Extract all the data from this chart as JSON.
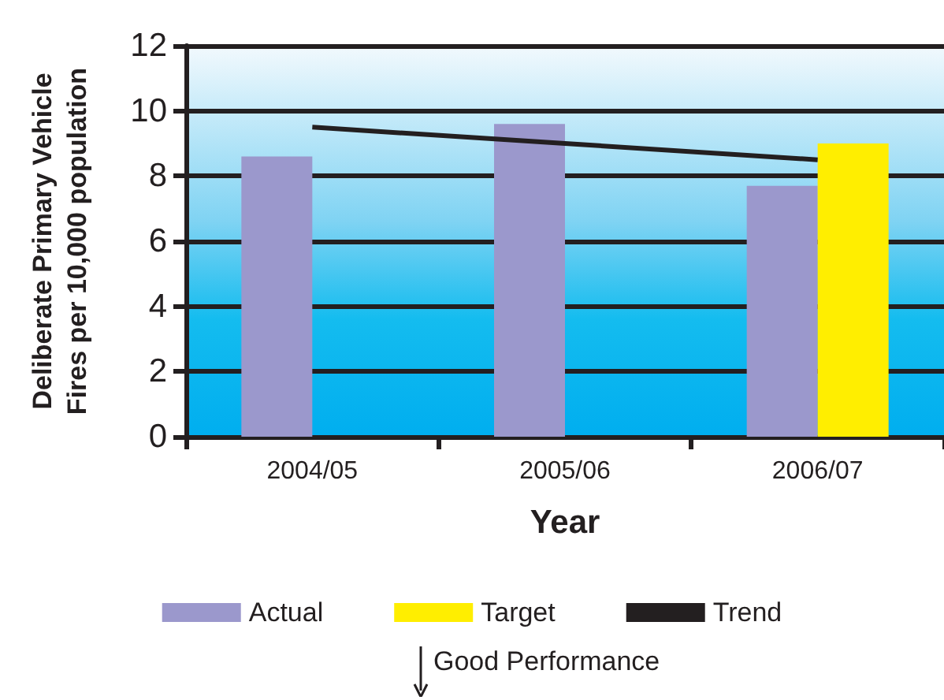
{
  "chart_data": {
    "type": "bar",
    "xlabel": "Year",
    "ylabel": "Deliberate Primary Vehicle\nFires per 10,000 population",
    "categories": [
      "2004/05",
      "2005/06",
      "2006/07"
    ],
    "series": [
      {
        "name": "Actual",
        "color": "#9b98cc",
        "values": [
          8.6,
          9.6,
          7.7
        ]
      },
      {
        "name": "Target",
        "color": "#ffee00",
        "values": [
          null,
          null,
          9.0
        ]
      },
      {
        "name": "Trend",
        "type": "line",
        "color": "#231f20",
        "values": [
          9.5,
          9.0,
          8.5
        ]
      }
    ],
    "ylim": [
      0,
      12
    ],
    "yticks": [
      0,
      2,
      4,
      6,
      8,
      10,
      12
    ],
    "grid": "y",
    "legend": "bottom",
    "marker": "none",
    "annotations": [
      "Good Performance"
    ]
  }
}
